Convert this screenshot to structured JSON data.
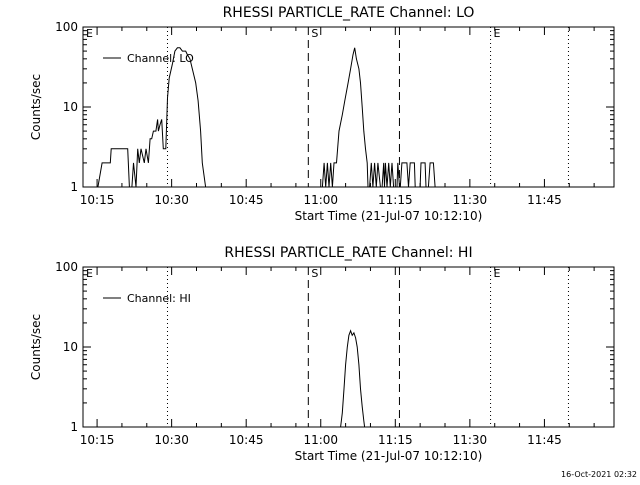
{
  "footer": {
    "timestamp": "16-Oct-2021 02:32"
  },
  "chart_data": [
    {
      "type": "line",
      "title": "RHESSI PARTICLE_RATE Channel: LO",
      "xlabel": "Start Time (21-Jul-07 10:12:10)",
      "ylabel": "Counts/sec",
      "yscale": "log",
      "xlim": [
        10.2028,
        11.9833
      ],
      "ylim": [
        1,
        100
      ],
      "x_ticks": [
        "10:15",
        "10:30",
        "10:45",
        "11:00",
        "11:15",
        "11:30",
        "11:45"
      ],
      "x_tick_values": [
        10.25,
        10.5,
        10.75,
        11.0,
        11.25,
        11.5,
        11.75
      ],
      "y_ticks": [
        "1",
        "10",
        "100"
      ],
      "y_tick_values": [
        1,
        10,
        100
      ],
      "legend": {
        "label": "Channel: LO",
        "placement": "top-left"
      },
      "markers": [
        {
          "label": "E",
          "x": 10.2028,
          "style": "dotted"
        },
        {
          "label": "",
          "x": 10.4861,
          "style": "dotted"
        },
        {
          "label": "S",
          "x": 10.9583,
          "style": "dashed"
        },
        {
          "label": "",
          "x": 11.2639,
          "style": "dashed"
        },
        {
          "label": "E",
          "x": 11.5694,
          "style": "dotted"
        },
        {
          "label": "",
          "x": 11.8306,
          "style": "dotted"
        }
      ],
      "series": [
        {
          "name": "Channel: LO",
          "segments": [
            {
              "x": [
                10.2528,
                10.2667,
                10.2694,
                10.2944,
                10.2972,
                10.3361,
                10.3417,
                10.3528,
                10.3583,
                10.3667,
                10.3722,
                10.3806,
                10.3861,
                10.3917,
                10.3972,
                10.4083,
                10.4139,
                10.4222,
                10.4278,
                10.4333,
                10.4389,
                10.4472,
                10.4528,
                10.4556,
                10.4611,
                10.4667,
                10.4722,
                10.4806,
                10.4861,
                10.4917,
                10.5028,
                10.5111,
                10.5194,
                10.5278,
                10.5361,
                10.5472,
                10.5528,
                10.5611,
                10.5694,
                10.5806,
                10.5889,
                10.5972,
                10.6028,
                10.6139,
                10.6222,
                10.6278,
                10.6333,
                10.6417,
                10.6472
              ],
              "y": [
                1,
                2,
                2,
                2,
                3,
                3,
                3,
                3,
                1,
                1,
                2,
                1,
                3,
                2,
                3,
                2,
                3,
                2,
                4,
                4,
                5,
                5,
                7,
                5,
                6,
                7,
                3,
                3,
                13,
                23,
                35,
                50,
                55,
                55,
                50,
                50,
                45,
                40,
                30,
                20,
                12,
                5,
                2,
                1,
                1,
                1,
                1,
                1,
                1
              ]
            },
            {
              "x": [
                11.0,
                11.0056,
                11.0111,
                11.0167,
                11.0222,
                11.0278,
                11.0333,
                11.0389,
                11.0444,
                11.0528,
                11.0611,
                11.0722,
                11.0806,
                11.0917,
                11.1,
                11.1083,
                11.1139,
                11.1194,
                11.1278,
                11.1333,
                11.1389,
                11.1444,
                11.15,
                11.1556,
                11.1583,
                11.1639,
                11.1694,
                11.175,
                11.1806,
                11.1861,
                11.1917,
                11.2
              ],
              "y": [
                1,
                1,
                2,
                1,
                2,
                1,
                2,
                1,
                2,
                2,
                5,
                8,
                12,
                20,
                30,
                45,
                55,
                40,
                30,
                20,
                10,
                5,
                3,
                2,
                1,
                1,
                2,
                1,
                2,
                1,
                2,
                1
              ]
            },
            {
              "x": [
                11.2056,
                11.2111,
                11.2139,
                11.2167,
                11.2222,
                11.2278,
                11.2333,
                11.2389,
                11.2444,
                11.2556,
                11.2583,
                11.2639,
                11.2667,
                11.2722,
                11.2889,
                11.2944,
                11.3,
                11.3139,
                11.3167,
                11.3333,
                11.3361,
                11.35,
                11.3528,
                11.3611,
                11.3667,
                11.3778,
                11.3833,
                11.3889,
                11.3917
              ],
              "y": [
                1,
                2,
                1,
                2,
                1,
                2,
                1,
                2,
                1,
                1,
                2,
                1,
                1,
                2,
                2,
                1,
                2,
                2,
                1,
                1,
                2,
                2,
                1,
                1,
                2,
                2,
                1,
                1,
                1
              ]
            }
          ]
        }
      ]
    },
    {
      "type": "line",
      "title": "RHESSI PARTICLE_RATE Channel: HI",
      "xlabel": "Start Time (21-Jul-07 10:12:10)",
      "ylabel": "Counts/sec",
      "yscale": "log",
      "xlim": [
        10.2028,
        11.9833
      ],
      "ylim": [
        1,
        100
      ],
      "x_ticks": [
        "10:15",
        "10:30",
        "10:45",
        "11:00",
        "11:15",
        "11:30",
        "11:45"
      ],
      "x_tick_values": [
        10.25,
        10.5,
        10.75,
        11.0,
        11.25,
        11.5,
        11.75
      ],
      "y_ticks": [
        "1",
        "10",
        "100"
      ],
      "y_tick_values": [
        1,
        10,
        100
      ],
      "legend": {
        "label": "Channel: HI",
        "placement": "top-left"
      },
      "markers": [
        {
          "label": "E",
          "x": 10.2028,
          "style": "dotted"
        },
        {
          "label": "",
          "x": 10.4861,
          "style": "dotted"
        },
        {
          "label": "S",
          "x": 10.9583,
          "style": "dashed"
        },
        {
          "label": "",
          "x": 11.2639,
          "style": "dashed"
        },
        {
          "label": "E",
          "x": 11.5694,
          "style": "dotted"
        },
        {
          "label": "",
          "x": 11.8306,
          "style": "dotted"
        }
      ],
      "series": [
        {
          "name": "Channel: HI",
          "segments": [
            {
              "x": [
                11.0667,
                11.0722,
                11.0778,
                11.0833,
                11.0889,
                11.0944,
                11.1,
                11.1056,
                11.1111,
                11.1167,
                11.1222,
                11.1278,
                11.1333,
                11.1389,
                11.1444,
                11.1472
              ],
              "y": [
                1,
                1.5,
                3,
                6,
                10,
                14,
                16,
                14,
                15,
                13,
                10,
                6,
                3,
                1.8,
                1.2,
                1
              ]
            }
          ]
        }
      ]
    }
  ]
}
